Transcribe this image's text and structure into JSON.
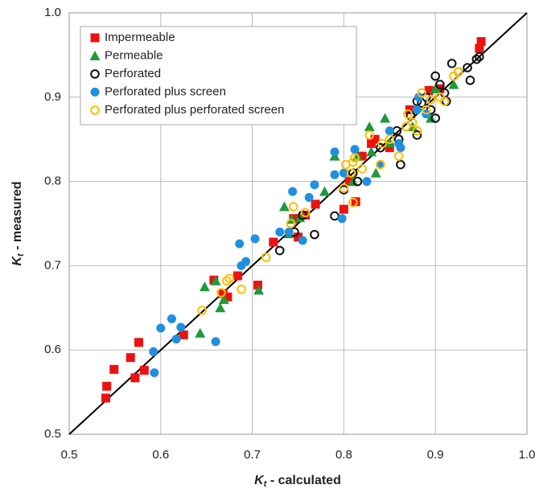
{
  "chart_data": {
    "type": "scatter",
    "x_label": [
      "K",
      "t",
      " - calculated"
    ],
    "y_label": [
      "K",
      "t",
      " - measured"
    ],
    "xlim": [
      0.5,
      1.0
    ],
    "ylim": [
      0.5,
      1.0
    ],
    "xticks": [
      0.5,
      0.6,
      0.7,
      0.8,
      0.9,
      {
        "value": 1,
        "label": "1.0"
      }
    ],
    "yticks": [
      0.5,
      0.6,
      0.7,
      0.8,
      0.9,
      {
        "value": 1,
        "label": "1.0"
      }
    ],
    "grid": true,
    "legend": "top-left",
    "series": [
      {
        "name": "Impermeable",
        "color": "#ee1111",
        "marker": "square",
        "filled": true,
        "x": [
          0.54,
          0.541,
          0.549,
          0.567,
          0.572,
          0.576,
          0.582,
          0.625,
          0.658,
          0.668,
          0.673,
          0.684,
          0.706,
          0.723,
          0.745,
          0.75,
          0.758,
          0.769,
          0.8,
          0.806,
          0.813,
          0.82,
          0.83,
          0.834,
          0.85,
          0.872,
          0.893,
          0.905,
          0.948,
          0.95
        ],
        "values": [
          0.543,
          0.557,
          0.577,
          0.591,
          0.567,
          0.609,
          0.576,
          0.618,
          0.683,
          0.667,
          0.663,
          0.688,
          0.677,
          0.728,
          0.756,
          0.734,
          0.76,
          0.773,
          0.767,
          0.8,
          0.776,
          0.83,
          0.845,
          0.85,
          0.84,
          0.885,
          0.908,
          0.91,
          0.958,
          0.966
        ]
      },
      {
        "name": "Permeable",
        "color": "#1e9a3a",
        "marker": "triangle",
        "filled": true,
        "x": [
          0.643,
          0.648,
          0.66,
          0.665,
          0.669,
          0.707,
          0.74,
          0.743,
          0.735,
          0.752,
          0.779,
          0.79,
          0.81,
          0.815,
          0.828,
          0.83,
          0.835,
          0.845,
          0.85,
          0.875,
          0.895,
          0.9,
          0.92
        ],
        "values": [
          0.62,
          0.675,
          0.682,
          0.65,
          0.66,
          0.671,
          0.738,
          0.755,
          0.77,
          0.757,
          0.788,
          0.83,
          0.8,
          0.83,
          0.865,
          0.835,
          0.81,
          0.875,
          0.846,
          0.865,
          0.875,
          0.91,
          0.915
        ]
      },
      {
        "name": "Perforated",
        "color": "#111111",
        "marker": "circle",
        "filled": false,
        "x": [
          0.73,
          0.746,
          0.755,
          0.768,
          0.79,
          0.8,
          0.81,
          0.815,
          0.84,
          0.858,
          0.86,
          0.862,
          0.873,
          0.88,
          0.88,
          0.885,
          0.89,
          0.895,
          0.9,
          0.9,
          0.905,
          0.91,
          0.912,
          0.918,
          0.925,
          0.935,
          0.938,
          0.945,
          0.948
        ],
        "values": [
          0.718,
          0.74,
          0.76,
          0.737,
          0.759,
          0.79,
          0.81,
          0.8,
          0.84,
          0.86,
          0.85,
          0.82,
          0.878,
          0.895,
          0.855,
          0.893,
          0.9,
          0.885,
          0.925,
          0.875,
          0.915,
          0.905,
          0.895,
          0.94,
          0.93,
          0.935,
          0.92,
          0.945,
          0.948
        ]
      },
      {
        "name": "Perforated plus screen",
        "color": "#1f8fe0",
        "marker": "circle",
        "filled": true,
        "x": [
          0.593,
          0.592,
          0.6,
          0.612,
          0.617,
          0.622,
          0.66,
          0.686,
          0.688,
          0.693,
          0.703,
          0.73,
          0.74,
          0.744,
          0.755,
          0.762,
          0.768,
          0.79,
          0.79,
          0.798,
          0.8,
          0.812,
          0.825,
          0.84,
          0.85,
          0.86,
          0.862,
          0.88,
          0.882,
          0.89
        ],
        "values": [
          0.573,
          0.598,
          0.626,
          0.637,
          0.613,
          0.627,
          0.61,
          0.726,
          0.7,
          0.705,
          0.732,
          0.74,
          0.74,
          0.788,
          0.73,
          0.781,
          0.796,
          0.835,
          0.808,
          0.756,
          0.81,
          0.838,
          0.8,
          0.82,
          0.86,
          0.845,
          0.84,
          0.885,
          0.9,
          0.88
        ]
      },
      {
        "name": "Perforated plus perforated screen",
        "color": "#ffbf00",
        "marker": "circle",
        "filled": false,
        "x": [
          0.645,
          0.666,
          0.672,
          0.675,
          0.688,
          0.715,
          0.742,
          0.745,
          0.758,
          0.8,
          0.802,
          0.808,
          0.81,
          0.81,
          0.812,
          0.82,
          0.828,
          0.84,
          0.842,
          0.85,
          0.86,
          0.868,
          0.87,
          0.875,
          0.88,
          0.885,
          0.89,
          0.895,
          0.905,
          0.91,
          0.92,
          0.925
        ],
        "values": [
          0.647,
          0.668,
          0.682,
          0.685,
          0.672,
          0.71,
          0.75,
          0.77,
          0.763,
          0.792,
          0.82,
          0.81,
          0.823,
          0.775,
          0.828,
          0.815,
          0.855,
          0.82,
          0.845,
          0.85,
          0.83,
          0.865,
          0.88,
          0.87,
          0.86,
          0.905,
          0.885,
          0.897,
          0.9,
          0.895,
          0.925,
          0.93
        ]
      }
    ]
  }
}
